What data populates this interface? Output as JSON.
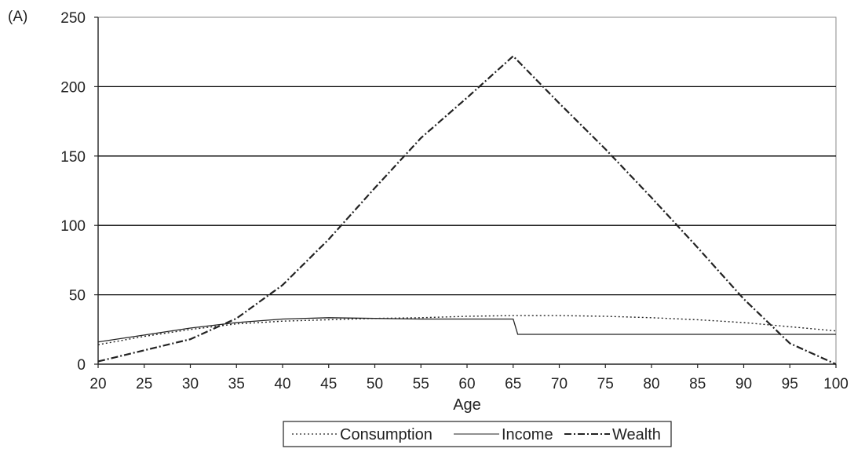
{
  "panel_label": "(A)",
  "chart_data": {
    "type": "line",
    "xlabel": "Age",
    "ylabel": "",
    "xlim": [
      20,
      100
    ],
    "ylim": [
      0,
      250
    ],
    "x_ticks": [
      20,
      25,
      30,
      35,
      40,
      45,
      50,
      55,
      60,
      65,
      70,
      75,
      80,
      85,
      90,
      95,
      100
    ],
    "y_ticks": [
      0,
      50,
      100,
      150,
      200,
      250
    ],
    "grid": "horizontal",
    "legend_position": "bottom",
    "series": [
      {
        "name": "Consumption",
        "style": "dotted",
        "x": [
          20,
          25,
          30,
          35,
          40,
          45,
          50,
          55,
          60,
          65,
          70,
          75,
          80,
          85,
          90,
          95,
          100
        ],
        "y": [
          14,
          20,
          25,
          29,
          31,
          32,
          33,
          33.5,
          34.5,
          35,
          35,
          34.5,
          33.5,
          32,
          30,
          27,
          24
        ]
      },
      {
        "name": "Income",
        "style": "solid",
        "x": [
          20,
          25,
          30,
          35,
          40,
          45,
          50,
          55,
          60,
          65,
          65.5,
          70,
          75,
          80,
          85,
          90,
          95,
          100
        ],
        "y": [
          16,
          21,
          26,
          30,
          32.5,
          33.5,
          33,
          32.5,
          32.5,
          32.5,
          21.5,
          21.5,
          21.5,
          21.5,
          21.5,
          21.5,
          21.5,
          21.5
        ]
      },
      {
        "name": "Wealth",
        "style": "dash-dot",
        "x": [
          20,
          25,
          30,
          35,
          40,
          45,
          50,
          55,
          60,
          65,
          70,
          75,
          80,
          85,
          90,
          95,
          100
        ],
        "y": [
          2,
          10,
          18,
          33,
          57,
          90,
          127,
          163,
          192,
          222,
          188,
          155,
          120,
          84,
          47,
          15,
          0
        ]
      }
    ]
  },
  "colors": {
    "line": "#222222",
    "grid": "#000000",
    "frame": "#8a8a8a"
  }
}
